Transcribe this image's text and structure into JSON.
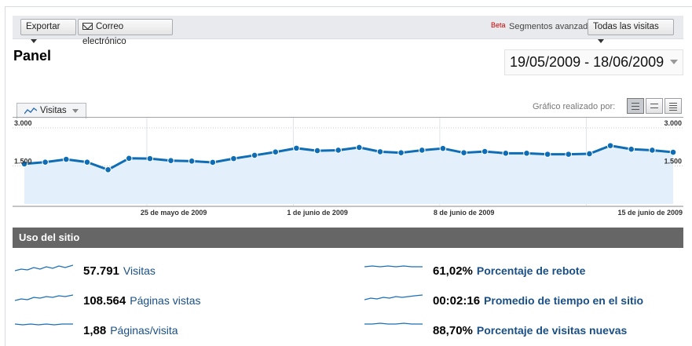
{
  "toolbar": {
    "export_label": "Exportar",
    "email_label": "Correo electrónico",
    "beta_label": "Beta",
    "segments_label": "Segmentos avanzados:",
    "segments_value": "Todas las visitas"
  },
  "page": {
    "title": "Panel",
    "date_range": "19/05/2009 - 18/06/2009"
  },
  "chart_header": {
    "metric_label": "Visitas",
    "graph_by_label": "Gráfico realizado por:"
  },
  "chart_data": {
    "type": "area",
    "series": [
      {
        "name": "Visitas",
        "values": [
          1580,
          1650,
          1760,
          1650,
          1350,
          1800,
          1790,
          1710,
          1690,
          1640,
          1790,
          1920,
          2050,
          2200,
          2100,
          2120,
          2230,
          2060,
          2020,
          2120,
          2190,
          2020,
          2070,
          2000,
          2000,
          1960,
          1960,
          1980,
          2300,
          2160,
          2120,
          2040
        ]
      }
    ],
    "ylim": [
      0,
      3000
    ],
    "yticks": [
      "1.500",
      "3.000"
    ],
    "xtick_labels": [
      "25 de mayo de 2009",
      "1 de junio de 2009",
      "8 de junio de 2009",
      "15 de junio de 2009"
    ],
    "grid": true,
    "color": "#0e6db4",
    "fill_color": "#e3f0fb"
  },
  "section": {
    "title": "Uso del sitio"
  },
  "stats": [
    {
      "value": "57.791",
      "label": "Visitas"
    },
    {
      "value": "108.564",
      "label": "Páginas vistas"
    },
    {
      "value": "1,88",
      "label": "Páginas/visita"
    },
    {
      "value": "61,02%",
      "label": "Porcentaje de rebote"
    },
    {
      "value": "00:02:16",
      "label": "Promedio de tiempo en el sitio"
    },
    {
      "value": "88,70%",
      "label": "Porcentaje de visitas nuevas"
    }
  ]
}
